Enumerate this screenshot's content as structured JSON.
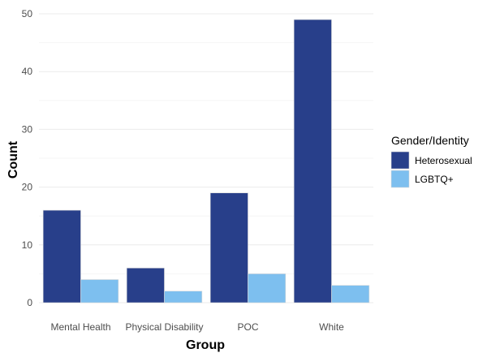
{
  "chart_data": {
    "type": "bar",
    "categories": [
      "Mental Health",
      "Physical Disability",
      "POC",
      "White"
    ],
    "series": [
      {
        "name": "Heterosexual",
        "values": [
          16,
          6,
          19,
          49
        ],
        "color": "#283f8a"
      },
      {
        "name": "LGBTQ+",
        "values": [
          4,
          2,
          5,
          3
        ],
        "color": "#7dbfef"
      }
    ],
    "xlabel": "Group",
    "ylabel": "Count",
    "ylim": [
      0,
      50
    ],
    "yticks": [
      0,
      10,
      20,
      30,
      40,
      50
    ],
    "grid": true,
    "legend": {
      "title": "Gender/Identity",
      "position": "right"
    }
  }
}
